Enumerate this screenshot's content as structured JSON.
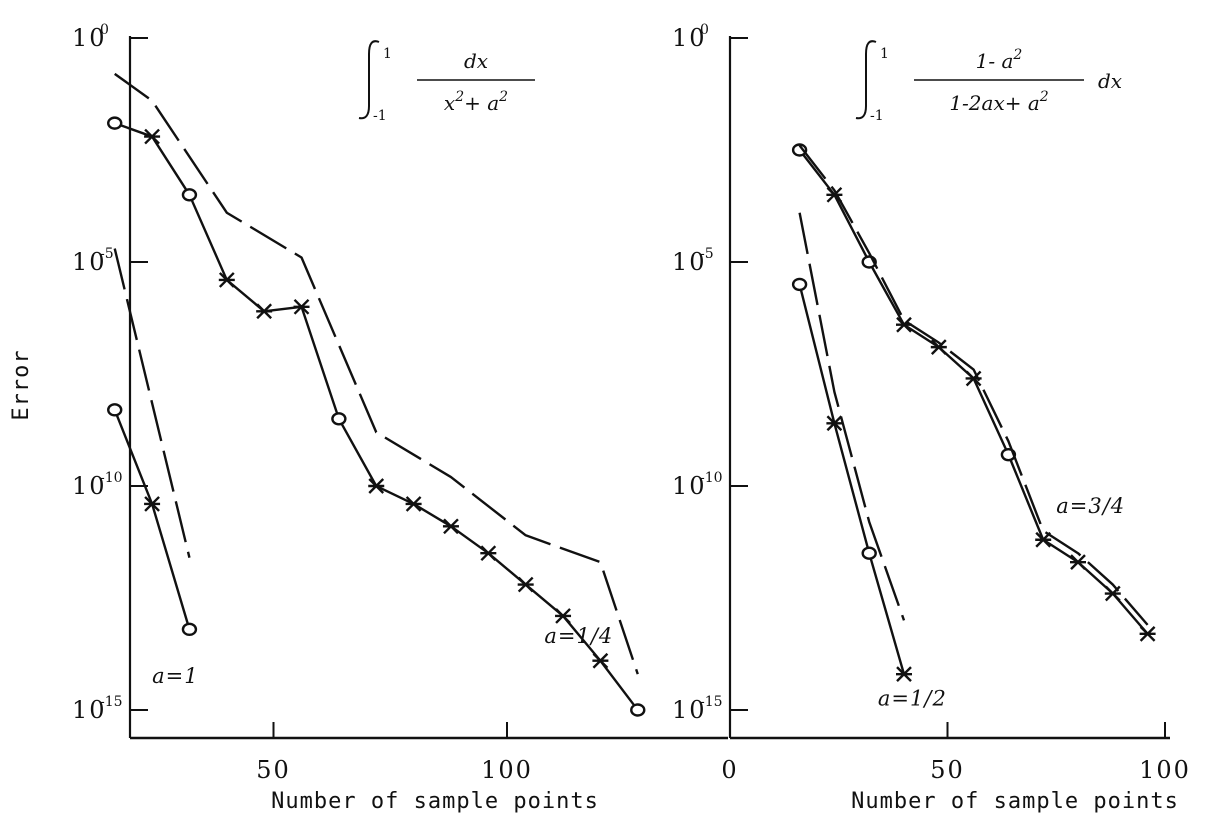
{
  "chart_data": [
    {
      "type": "line",
      "formula": {
        "integral_lower": "-1",
        "integral_upper": "1",
        "numerator": "dx",
        "denominator_parts": [
          {
            "text": "x"
          },
          {
            "text": "2",
            "sup": true
          },
          {
            "text": "+ a"
          },
          {
            "text": "2",
            "sup": true
          }
        ]
      },
      "xlabel": "Number of sample points",
      "ylabel": "Error",
      "log_y": true,
      "xlim": [
        0,
        125
      ],
      "ylim": [
        -16,
        0
      ],
      "xticks": [
        {
          "value": 50,
          "label": "50"
        },
        {
          "value": 100,
          "label": "100"
        }
      ],
      "yticks": [
        {
          "value": 0,
          "base": "10",
          "exp": "0"
        },
        {
          "value": -5,
          "base": "10",
          "exp": "-5"
        },
        {
          "value": -10,
          "base": "10",
          "exp": "-10"
        },
        {
          "value": -15,
          "base": "10",
          "exp": "-15"
        }
      ],
      "series": [
        {
          "style": "solid",
          "points": [
            [
              16,
              -8.3
            ],
            [
              24,
              -10.4
            ],
            [
              32,
              -13.2
            ]
          ],
          "markers": [
            "circle",
            "star",
            "circle"
          ]
        },
        {
          "style": "dashed",
          "points": [
            [
              16,
              -4.7
            ],
            [
              32,
              -11.6
            ]
          ]
        },
        {
          "style": "solid",
          "points": [
            [
              16,
              -1.9
            ],
            [
              24,
              -2.2
            ],
            [
              32,
              -3.5
            ],
            [
              40,
              -5.4
            ],
            [
              48,
              -6.1
            ],
            [
              56,
              -6.0
            ],
            [
              64,
              -8.5
            ],
            [
              72,
              -10.0
            ],
            [
              80,
              -10.4
            ],
            [
              88,
              -10.9
            ],
            [
              96,
              -11.5
            ],
            [
              104,
              -12.2
            ],
            [
              112,
              -12.9
            ],
            [
              120,
              -13.9
            ],
            [
              128,
              -15.0
            ]
          ],
          "markers": [
            "circle",
            "star",
            "circle",
            "star",
            "star",
            "star",
            "circle",
            "star",
            "star",
            "star",
            "star",
            "star",
            "star",
            "star",
            "circle"
          ]
        },
        {
          "style": "dashed",
          "points": [
            [
              16,
              -0.8
            ],
            [
              24,
              -1.4
            ],
            [
              40,
              -3.9
            ],
            [
              56,
              -4.9
            ],
            [
              72,
              -8.8
            ],
            [
              88,
              -9.8
            ],
            [
              104,
              -11.1
            ],
            [
              120,
              -11.7
            ],
            [
              128,
              -14.2
            ]
          ]
        }
      ],
      "labels": [
        {
          "text": "a=1",
          "x": 24,
          "y": -14.4
        },
        {
          "text": "a=1/4",
          "x": 108,
          "y": -13.5
        }
      ]
    },
    {
      "type": "line",
      "formula": {
        "integral_lower": "-1",
        "integral_upper": "1",
        "numerator_parts": [
          {
            "text": "1- a"
          },
          {
            "text": "2",
            "sup": true
          }
        ],
        "denominator_parts": [
          {
            "text": "1-2ax+ a"
          },
          {
            "text": "2",
            "sup": true
          }
        ],
        "suffix": "dx"
      },
      "xlabel": "Number of sample points",
      "ylabel": "",
      "log_y": true,
      "xlim": [
        0,
        100
      ],
      "ylim": [
        -16,
        0
      ],
      "xticks": [
        {
          "value": 0,
          "label": "0"
        },
        {
          "value": 50,
          "label": "50"
        },
        {
          "value": 100,
          "label": "100"
        }
      ],
      "yticks": [
        {
          "value": 0,
          "base": "10",
          "exp": "0"
        },
        {
          "value": -5,
          "base": "10",
          "exp": "-5"
        },
        {
          "value": -10,
          "base": "10",
          "exp": "-10"
        },
        {
          "value": -15,
          "base": "10",
          "exp": "-15"
        }
      ],
      "series": [
        {
          "style": "solid",
          "points": [
            [
              16,
              -5.5
            ],
            [
              24,
              -8.6
            ],
            [
              32,
              -11.5
            ],
            [
              40,
              -14.2
            ]
          ],
          "markers": [
            "circle",
            "star",
            "circle",
            "star"
          ]
        },
        {
          "style": "dashed",
          "points": [
            [
              16,
              -3.9
            ],
            [
              24,
              -7.9
            ],
            [
              32,
              -10.8
            ],
            [
              40,
              -13.0
            ]
          ]
        },
        {
          "style": "solid",
          "points": [
            [
              16,
              -2.5
            ],
            [
              24,
              -3.5
            ],
            [
              32,
              -5.0
            ],
            [
              40,
              -6.4
            ],
            [
              48,
              -6.9
            ],
            [
              56,
              -7.6
            ],
            [
              64,
              -9.3
            ],
            [
              72,
              -11.2
            ],
            [
              80,
              -11.7
            ],
            [
              88,
              -12.4
            ],
            [
              96,
              -13.3
            ]
          ],
          "markers": [
            "circle",
            "star",
            "circle",
            "star",
            "star",
            "star",
            "circle",
            "star",
            "star",
            "star",
            "star"
          ]
        },
        {
          "style": "dashed",
          "points": [
            [
              16,
              -2.4
            ],
            [
              24,
              -3.4
            ],
            [
              32,
              -4.8
            ],
            [
              40,
              -6.3
            ],
            [
              48,
              -6.8
            ],
            [
              56,
              -7.4
            ],
            [
              64,
              -9.0
            ],
            [
              72,
              -11.0
            ],
            [
              80,
              -11.5
            ],
            [
              88,
              -12.2
            ],
            [
              96,
              -13.1
            ]
          ]
        }
      ],
      "labels": [
        {
          "text": "a=1/2",
          "x": 34,
          "y": -14.9
        },
        {
          "text": "a=3/4",
          "x": 75,
          "y": -10.6
        }
      ]
    }
  ]
}
